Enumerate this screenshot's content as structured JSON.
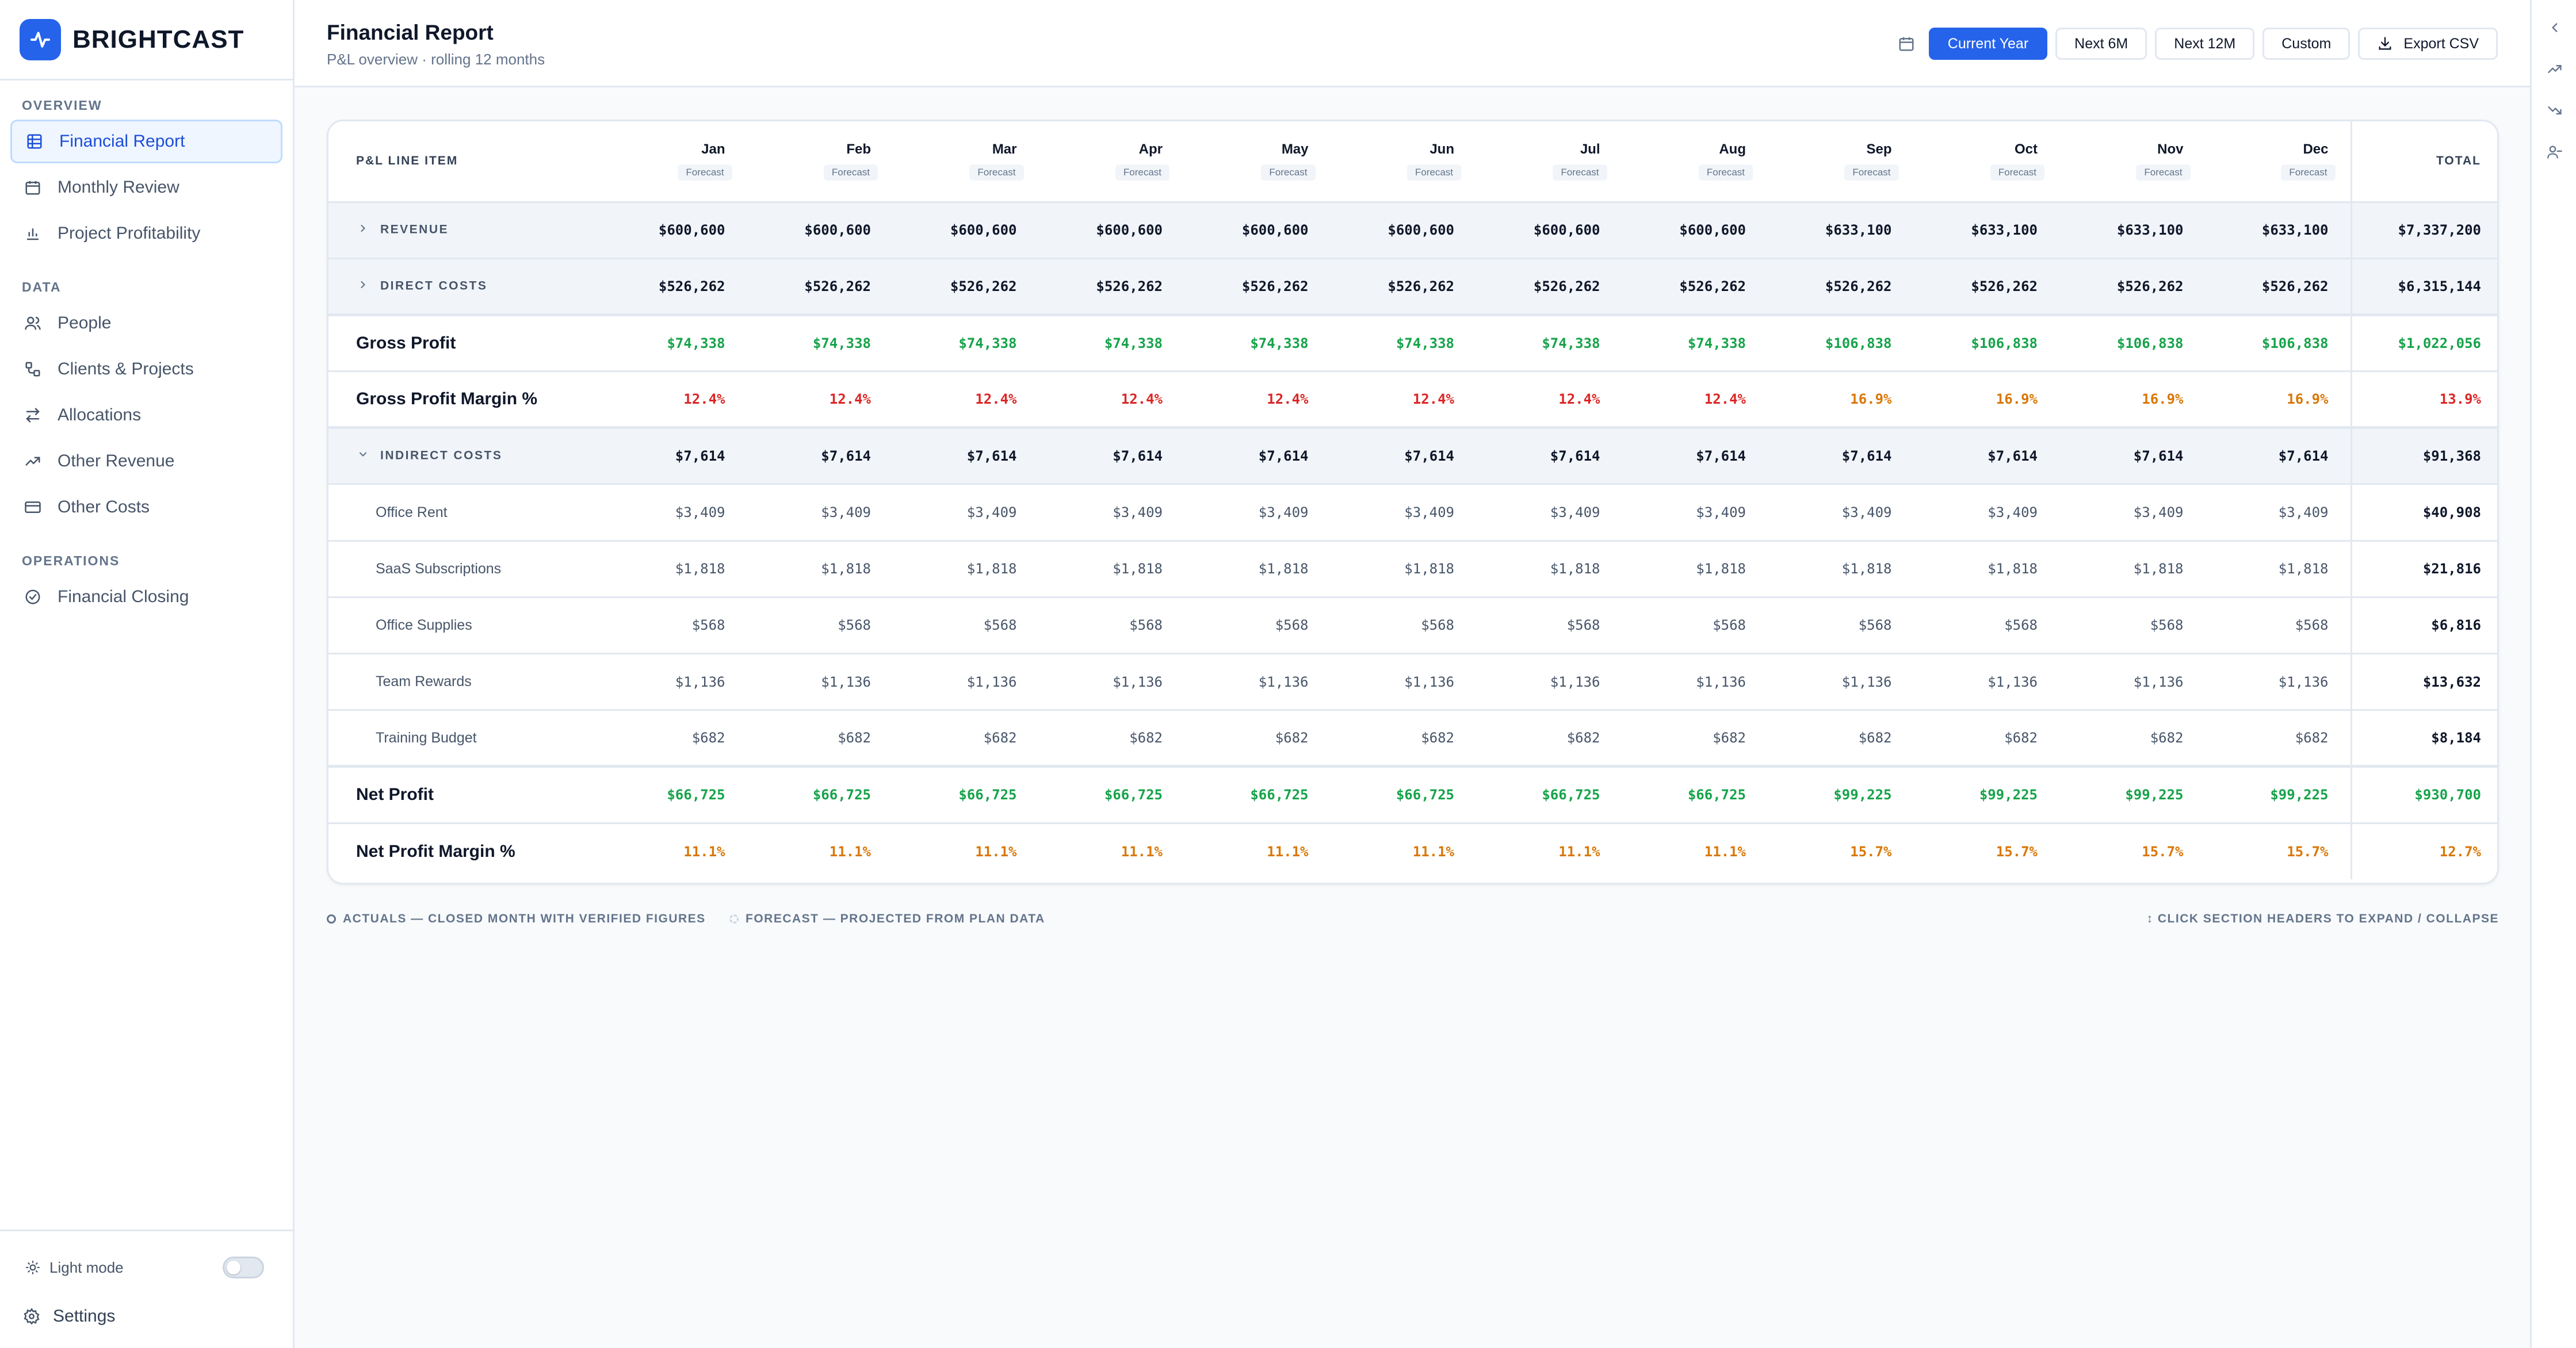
{
  "brand": {
    "name": "BRIGHTCAST"
  },
  "sidebar": {
    "sections": [
      {
        "title": "OVERVIEW",
        "items": [
          {
            "label": "Financial Report",
            "icon": "table-icon",
            "active": true
          },
          {
            "label": "Monthly Review",
            "icon": "calendar-icon",
            "active": false
          },
          {
            "label": "Project Profitability",
            "icon": "bar-chart-icon",
            "active": false
          }
        ]
      },
      {
        "title": "DATA",
        "items": [
          {
            "label": "People",
            "icon": "users-icon",
            "active": false
          },
          {
            "label": "Clients & Projects",
            "icon": "network-icon",
            "active": false
          },
          {
            "label": "Allocations",
            "icon": "swap-icon",
            "active": false
          },
          {
            "label": "Other Revenue",
            "icon": "trending-up-icon",
            "active": false
          },
          {
            "label": "Other Costs",
            "icon": "card-icon",
            "active": false
          }
        ]
      },
      {
        "title": "OPERATIONS",
        "items": [
          {
            "label": "Financial Closing",
            "icon": "check-circle-icon",
            "active": false
          }
        ]
      }
    ],
    "light_mode_label": "Light mode",
    "settings_label": "Settings"
  },
  "header": {
    "title": "Financial Report",
    "subtitle": "P&L overview · rolling 12 months",
    "range_buttons": [
      "Current Year",
      "Next 6M",
      "Next 12M",
      "Custom"
    ],
    "active_range": "Current Year",
    "export_label": "Export CSV"
  },
  "table": {
    "label_header": "P&L LINE ITEM",
    "total_header": "TOTAL",
    "months": [
      "Jan",
      "Feb",
      "Mar",
      "Apr",
      "May",
      "Jun",
      "Jul",
      "Aug",
      "Sep",
      "Oct",
      "Nov",
      "Dec"
    ],
    "month_status": "Forecast",
    "rows": [
      {
        "type": "section",
        "label": "REVENUE",
        "expanded": false,
        "values": [
          "$600,600",
          "$600,600",
          "$600,600",
          "$600,600",
          "$600,600",
          "$600,600",
          "$600,600",
          "$600,600",
          "$633,100",
          "$633,100",
          "$633,100",
          "$633,100"
        ],
        "total": "$7,337,200"
      },
      {
        "type": "section",
        "label": "DIRECT COSTS",
        "expanded": false,
        "values": [
          "$526,262",
          "$526,262",
          "$526,262",
          "$526,262",
          "$526,262",
          "$526,262",
          "$526,262",
          "$526,262",
          "$526,262",
          "$526,262",
          "$526,262",
          "$526,262"
        ],
        "total": "$6,315,144"
      },
      {
        "type": "major",
        "label": "Gross Profit",
        "tone": "pos",
        "values": [
          "$74,338",
          "$74,338",
          "$74,338",
          "$74,338",
          "$74,338",
          "$74,338",
          "$74,338",
          "$74,338",
          "$106,838",
          "$106,838",
          "$106,838",
          "$106,838"
        ],
        "total": "$1,022,056"
      },
      {
        "type": "major",
        "label": "Gross Profit Margin %",
        "tones": [
          "neg",
          "neg",
          "neg",
          "neg",
          "neg",
          "neg",
          "neg",
          "neg",
          "warn",
          "warn",
          "warn",
          "warn"
        ],
        "total_tone": "neg",
        "values": [
          "12.4%",
          "12.4%",
          "12.4%",
          "12.4%",
          "12.4%",
          "12.4%",
          "12.4%",
          "12.4%",
          "16.9%",
          "16.9%",
          "16.9%",
          "16.9%"
        ],
        "total": "13.9%"
      },
      {
        "type": "section",
        "label": "INDIRECT COSTS",
        "expanded": true,
        "values": [
          "$7,614",
          "$7,614",
          "$7,614",
          "$7,614",
          "$7,614",
          "$7,614",
          "$7,614",
          "$7,614",
          "$7,614",
          "$7,614",
          "$7,614",
          "$7,614"
        ],
        "total": "$91,368"
      },
      {
        "type": "child",
        "label": "Office Rent",
        "values": [
          "$3,409",
          "$3,409",
          "$3,409",
          "$3,409",
          "$3,409",
          "$3,409",
          "$3,409",
          "$3,409",
          "$3,409",
          "$3,409",
          "$3,409",
          "$3,409"
        ],
        "total": "$40,908"
      },
      {
        "type": "child",
        "label": "SaaS Subscriptions",
        "values": [
          "$1,818",
          "$1,818",
          "$1,818",
          "$1,818",
          "$1,818",
          "$1,818",
          "$1,818",
          "$1,818",
          "$1,818",
          "$1,818",
          "$1,818",
          "$1,818"
        ],
        "total": "$21,816"
      },
      {
        "type": "child",
        "label": "Office Supplies",
        "values": [
          "$568",
          "$568",
          "$568",
          "$568",
          "$568",
          "$568",
          "$568",
          "$568",
          "$568",
          "$568",
          "$568",
          "$568"
        ],
        "total": "$6,816"
      },
      {
        "type": "child",
        "label": "Team Rewards",
        "values": [
          "$1,136",
          "$1,136",
          "$1,136",
          "$1,136",
          "$1,136",
          "$1,136",
          "$1,136",
          "$1,136",
          "$1,136",
          "$1,136",
          "$1,136",
          "$1,136"
        ],
        "total": "$13,632"
      },
      {
        "type": "child",
        "label": "Training Budget",
        "values": [
          "$682",
          "$682",
          "$682",
          "$682",
          "$682",
          "$682",
          "$682",
          "$682",
          "$682",
          "$682",
          "$682",
          "$682"
        ],
        "total": "$8,184"
      },
      {
        "type": "major",
        "label": "Net Profit",
        "tone": "pos",
        "values": [
          "$66,725",
          "$66,725",
          "$66,725",
          "$66,725",
          "$66,725",
          "$66,725",
          "$66,725",
          "$66,725",
          "$99,225",
          "$99,225",
          "$99,225",
          "$99,225"
        ],
        "total": "$930,700"
      },
      {
        "type": "major",
        "label": "Net Profit Margin %",
        "tone": "warn",
        "values": [
          "11.1%",
          "11.1%",
          "11.1%",
          "11.1%",
          "11.1%",
          "11.1%",
          "11.1%",
          "11.1%",
          "15.7%",
          "15.7%",
          "15.7%",
          "15.7%"
        ],
        "total": "12.7%"
      }
    ]
  },
  "legend": {
    "actuals": "ACTUALS — CLOSED MONTH WITH VERIFIED FIGURES",
    "forecast": "FORECAST — PROJECTED FROM PLAN DATA",
    "hint": "↕ CLICK SECTION HEADERS TO EXPAND / COLLAPSE"
  },
  "rail": {
    "icons": [
      "chevron-left-icon",
      "trending-up-icon",
      "trending-down-icon",
      "user-minus-icon"
    ]
  },
  "colors": {
    "accent": "#2563eb",
    "positive": "#16a34a",
    "negative": "#dc2626",
    "warning": "#d97706"
  }
}
